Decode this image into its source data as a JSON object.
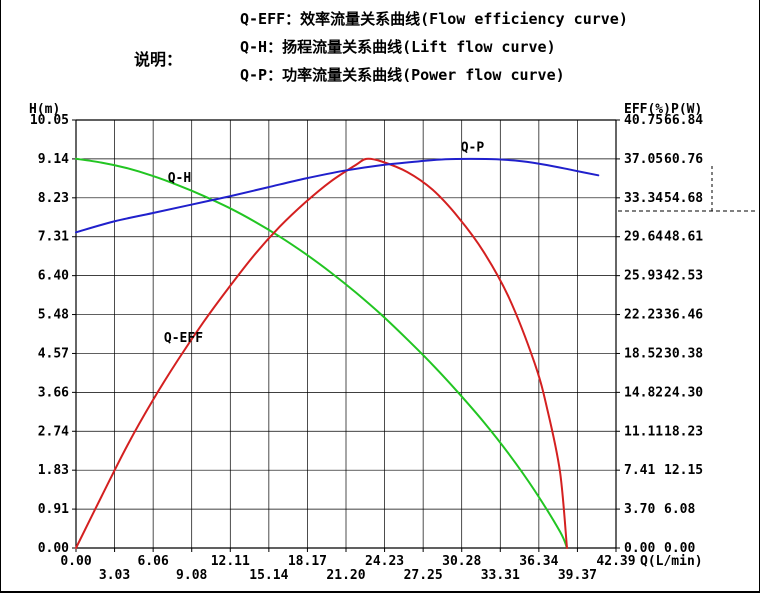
{
  "legend": {
    "label": "说明：",
    "lines": [
      "Q-EFF：效率流量关系曲线(Flow efficiency curve)",
      "Q-H：扬程流量关系曲线(Lift flow curve)",
      "Q-P：功率流量关系曲线(Power flow curve)"
    ]
  },
  "chart_data": {
    "type": "line",
    "title": "",
    "grid": true,
    "axes": {
      "x": {
        "label": "Q(L/min)",
        "min": 0,
        "max": 42.39,
        "gridlines": 15,
        "ticks_row1": [
          "0.00",
          "6.06",
          "12.11",
          "18.17",
          "24.23",
          "30.28",
          "36.34",
          "42.39"
        ],
        "ticks_row2": [
          "3.03",
          "9.08",
          "15.14",
          "21.20",
          "27.25",
          "33.31",
          "39.37"
        ]
      },
      "h": {
        "label": "H(m)",
        "min": 0,
        "max": 10.05,
        "ticks": [
          "10.05",
          "9.14",
          "8.23",
          "7.31",
          "6.40",
          "5.48",
          "4.57",
          "3.66",
          "2.74",
          "1.83",
          "0.91",
          "0.00"
        ]
      },
      "eff": {
        "label": "EFF(%)",
        "min": 0,
        "max": 40.75,
        "ticks": [
          "40.75",
          "37.05",
          "33.34",
          "29.64",
          "25.93",
          "22.23",
          "18.52",
          "14.82",
          "11.11",
          "7.41",
          "3.70",
          "0.00"
        ]
      },
      "p": {
        "label": "P(W)",
        "min": 0,
        "max": 66.84,
        "ticks": [
          "66.84",
          "60.76",
          "54.68",
          "48.61",
          "42.53",
          "36.46",
          "30.38",
          "24.30",
          "18.23",
          "12.15",
          "6.08",
          "0.00"
        ]
      }
    },
    "series": [
      {
        "name": "Q-H",
        "axis": "h",
        "color": "#22c522",
        "points": [
          [
            0,
            9.14
          ],
          [
            2,
            9.05
          ],
          [
            4,
            8.92
          ],
          [
            6,
            8.74
          ],
          [
            8,
            8.52
          ],
          [
            10,
            8.27
          ],
          [
            12,
            7.99
          ],
          [
            14,
            7.67
          ],
          [
            16,
            7.31
          ],
          [
            18,
            6.91
          ],
          [
            20,
            6.47
          ],
          [
            22,
            5.99
          ],
          [
            24,
            5.47
          ],
          [
            26,
            4.9
          ],
          [
            28,
            4.3
          ],
          [
            30,
            3.65
          ],
          [
            32,
            2.96
          ],
          [
            34,
            2.2
          ],
          [
            36,
            1.35
          ],
          [
            38,
            0.38
          ],
          [
            38.54,
            0
          ]
        ]
      },
      {
        "name": "Q-EFF",
        "axis": "eff",
        "color": "#d42020",
        "points": [
          [
            0,
            0
          ],
          [
            2,
            4.9
          ],
          [
            4,
            9.7
          ],
          [
            6,
            14.0
          ],
          [
            8,
            17.9
          ],
          [
            10,
            21.5
          ],
          [
            12,
            24.8
          ],
          [
            14,
            27.9
          ],
          [
            16,
            30.6
          ],
          [
            18,
            32.9
          ],
          [
            20,
            34.9
          ],
          [
            22,
            36.5
          ],
          [
            22.8,
            37.05
          ],
          [
            24,
            36.8
          ],
          [
            26,
            35.8
          ],
          [
            28,
            34.1
          ],
          [
            30,
            31.5
          ],
          [
            32,
            28.2
          ],
          [
            34,
            23.8
          ],
          [
            36,
            17.6
          ],
          [
            37,
            13.2
          ],
          [
            38,
            7.2
          ],
          [
            38.54,
            0
          ]
        ]
      },
      {
        "name": "Q-P",
        "axis": "p",
        "color": "#2020cc",
        "points": [
          [
            0,
            49.3
          ],
          [
            3,
            51.0
          ],
          [
            6,
            52.3
          ],
          [
            9,
            53.6
          ],
          [
            12,
            54.9
          ],
          [
            15,
            56.3
          ],
          [
            18,
            57.7
          ],
          [
            21,
            58.9
          ],
          [
            24,
            59.8
          ],
          [
            27,
            60.4
          ],
          [
            29,
            60.7
          ],
          [
            31,
            60.76
          ],
          [
            33,
            60.7
          ],
          [
            35,
            60.4
          ],
          [
            37,
            59.8
          ],
          [
            39,
            59.0
          ],
          [
            41,
            58.2
          ]
        ]
      }
    ],
    "annotations": [
      {
        "text": "Q-H",
        "axis": "h",
        "q": 7.2,
        "value": 8.6
      },
      {
        "text": "Q-EFF",
        "axis": "eff",
        "q": 6.9,
        "value": 19.6
      },
      {
        "text": "Q-P",
        "axis": "p",
        "q": 30.2,
        "value": 61.9
      }
    ]
  }
}
